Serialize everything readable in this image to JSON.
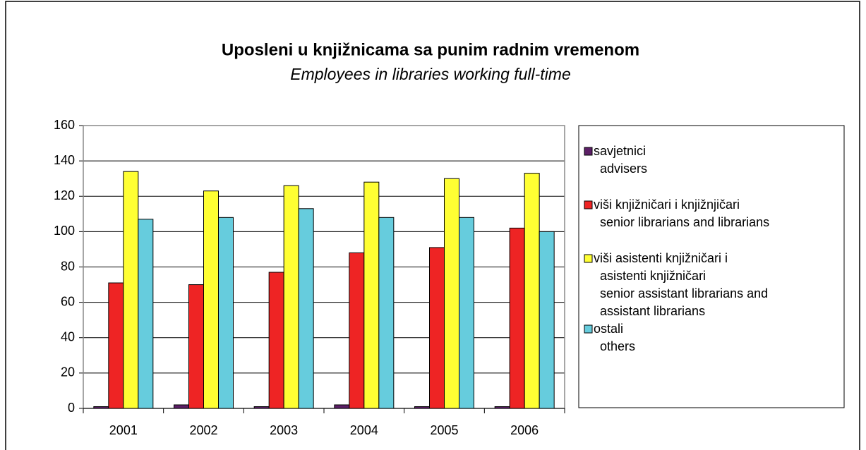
{
  "chart_data": {
    "type": "bar",
    "title": "Uposleni u knjižnicama sa punim radnim vremenom",
    "subtitle": "Employees in libraries working full-time",
    "categories": [
      "2001",
      "2002",
      "2003",
      "2004",
      "2005",
      "2006"
    ],
    "series": [
      {
        "name": "savjetnici\nadvisers",
        "color": "#5c1f66",
        "values": [
          1,
          2,
          1,
          2,
          1,
          1
        ]
      },
      {
        "name": "viši knjižničari i knjižnjičari\nsenior librarians and librarians",
        "color": "#ee2424",
        "values": [
          71,
          70,
          77,
          88,
          91,
          102
        ]
      },
      {
        "name": "viši asistenti knjižničari i\nasistenti knjižničari\nsenior assistant librarians and\nassistant librarians",
        "color": "#ffff33",
        "values": [
          134,
          123,
          126,
          128,
          130,
          133
        ]
      },
      {
        "name": "ostali\nothers",
        "color": "#66ccdd",
        "values": [
          107,
          108,
          113,
          108,
          108,
          100
        ]
      }
    ],
    "ylim": [
      0,
      160
    ],
    "yticks": [
      0,
      20,
      40,
      60,
      80,
      100,
      120,
      140,
      160
    ],
    "grid": true,
    "legend": "right"
  }
}
